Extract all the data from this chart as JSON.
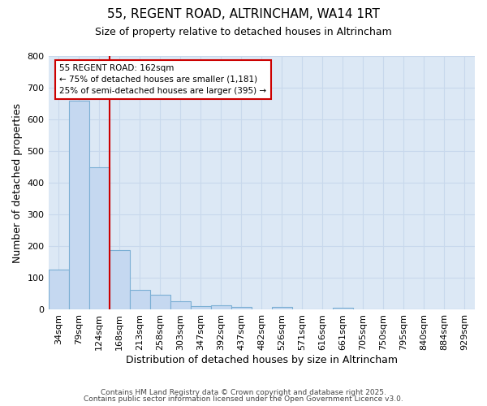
{
  "title_line1": "55, REGENT ROAD, ALTRINCHAM, WA14 1RT",
  "title_line2": "Size of property relative to detached houses in Altrincham",
  "xlabel": "Distribution of detached houses by size in Altrincham",
  "ylabel": "Number of detached properties",
  "categories": [
    "34sqm",
    "79sqm",
    "124sqm",
    "168sqm",
    "213sqm",
    "258sqm",
    "303sqm",
    "347sqm",
    "392sqm",
    "437sqm",
    "482sqm",
    "526sqm",
    "571sqm",
    "616sqm",
    "661sqm",
    "705sqm",
    "750sqm",
    "795sqm",
    "840sqm",
    "884sqm",
    "929sqm"
  ],
  "values": [
    127,
    660,
    450,
    188,
    63,
    46,
    27,
    11,
    13,
    9,
    0,
    8,
    0,
    0,
    6,
    0,
    0,
    0,
    0,
    0,
    0
  ],
  "bar_color": "#c5d8f0",
  "bar_edge_color": "#7bafd4",
  "vline_color": "#cc0000",
  "annotation_box_text_line1": "55 REGENT ROAD: 162sqm",
  "annotation_box_text_line2": "← 75% of detached houses are smaller (1,181)",
  "annotation_box_text_line3": "25% of semi-detached houses are larger (395) →",
  "annotation_box_color": "#cc0000",
  "annotation_box_bg": "#ffffff",
  "ylim": [
    0,
    800
  ],
  "yticks": [
    0,
    100,
    200,
    300,
    400,
    500,
    600,
    700,
    800
  ],
  "grid_color": "#c8d8ec",
  "plot_bg_color": "#dce8f5",
  "fig_bg_color": "#ffffff",
  "footer_line1": "Contains HM Land Registry data © Crown copyright and database right 2025.",
  "footer_line2": "Contains public sector information licensed under the Open Government Licence v3.0.",
  "title_fontsize": 11,
  "subtitle_fontsize": 9,
  "tick_fontsize": 8,
  "ylabel_fontsize": 9,
  "xlabel_fontsize": 9,
  "footer_fontsize": 6.5
}
